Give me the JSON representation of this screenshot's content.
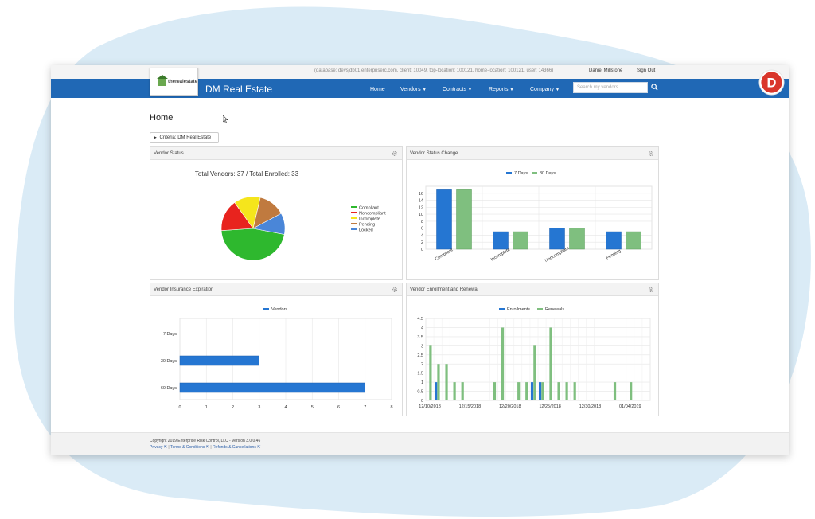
{
  "topbar": {
    "db_info": "(database: devsjdb01.enterpriserc.com, client: 10049, top-location: 100121, home-location: 100121, user: 14366)",
    "user_name": "Daniel Millstone",
    "sign_out": "Sign Out"
  },
  "header": {
    "logo_text": "therealestate",
    "brand": "DM Real Estate",
    "nav": [
      {
        "label": "Home",
        "dropdown": false
      },
      {
        "label": "Vendors",
        "dropdown": true
      },
      {
        "label": "Contracts",
        "dropdown": true
      },
      {
        "label": "Reports",
        "dropdown": true
      },
      {
        "label": "Company",
        "dropdown": true
      }
    ],
    "search_placeholder": "Search my vendors",
    "avatar_letter": "D"
  },
  "main": {
    "title": "Home",
    "criteria": "Criteria: DM Real Estate"
  },
  "panels": {
    "vendor_status": "Vendor Status",
    "vendor_status_change": "Vendor Status Change",
    "vendor_insurance_expiration": "Vendor Insurance Expiration",
    "vendor_enrollment_renewal": "Vendor Enrollment and Renewal"
  },
  "footer": {
    "copyright": "Copyright 2019 Enterprise Risk Control, LLC - Version 3.0.0.46",
    "links": [
      "Privacy",
      "Terms & Conditions",
      "Refunds & Cancellations"
    ]
  },
  "colors": {
    "nav_blue": "#2068b5",
    "blue_series": "#2576d2",
    "green_series": "#7fbf7f",
    "avatar_red": "#d9362b"
  },
  "chart_data": [
    {
      "type": "pie",
      "title": "Total Vendors: 37 / Total Enrolled: 33",
      "legend_position": "right",
      "slices": [
        {
          "label": "Compliant",
          "value": 17,
          "color": "#2eb82e"
        },
        {
          "label": "Noncompliant",
          "value": 6,
          "color": "#e8231e"
        },
        {
          "label": "Incomplete",
          "value": 5,
          "color": "#f5e51c"
        },
        {
          "label": "Pending",
          "value": 5,
          "color": "#c07a3f"
        },
        {
          "label": "Locked",
          "value": 4,
          "color": "#4a86d8"
        }
      ]
    },
    {
      "type": "bar",
      "categories": [
        "Compliant",
        "Incomplete",
        "Noncompliant",
        "Pending"
      ],
      "series": [
        {
          "name": "7 Days",
          "values": [
            17,
            5,
            6,
            5
          ],
          "color": "#2576d2"
        },
        {
          "name": "30 Days",
          "values": [
            17,
            5,
            6,
            5
          ],
          "color": "#7fbf7f"
        }
      ],
      "ylim": [
        0,
        18
      ],
      "yticks": [
        0,
        2,
        4,
        6,
        8,
        10,
        12,
        14,
        16
      ],
      "legend_position": "top",
      "grid": true
    },
    {
      "type": "bar",
      "orientation": "horizontal",
      "categories": [
        "7 Days",
        "30 Days",
        "60 Days"
      ],
      "series": [
        {
          "name": "Vendors",
          "values": [
            0,
            3,
            7
          ],
          "color": "#2576d2"
        }
      ],
      "xlim": [
        0,
        8
      ],
      "xticks": [
        0,
        1,
        2,
        3,
        4,
        5,
        6,
        7,
        8
      ],
      "legend_position": "top",
      "grid": true
    },
    {
      "type": "bar",
      "x_start": "2018-12-10",
      "x": [
        "12/10/2018",
        "12/11/2018",
        "12/12/2018",
        "12/13/2018",
        "12/14/2018",
        "12/15/2018",
        "12/16/2018",
        "12/17/2018",
        "12/18/2018",
        "12/19/2018",
        "12/20/2018",
        "12/21/2018",
        "12/22/2018",
        "12/23/2018",
        "12/24/2018",
        "12/25/2018",
        "12/26/2018",
        "12/27/2018",
        "12/28/2018",
        "12/29/2018",
        "12/30/2018",
        "12/31/2018",
        "01/01/2019",
        "01/02/2019",
        "01/03/2019",
        "01/04/2019",
        "01/05/2019",
        "01/06/2019"
      ],
      "xtick_labels": [
        "12/10/2018",
        "12/15/2018",
        "12/20/2018",
        "12/25/2018",
        "12/30/2018",
        "01/04/2019"
      ],
      "series": [
        {
          "name": "Enrollments",
          "values": [
            0,
            1,
            0,
            0,
            0,
            0,
            0,
            0,
            0,
            0,
            0,
            0,
            0,
            1,
            1,
            0,
            0,
            0,
            0,
            0,
            0,
            0,
            0,
            0,
            0,
            0,
            0,
            0
          ],
          "color": "#2576d2"
        },
        {
          "name": "Renewals",
          "values": [
            3,
            2,
            2,
            1,
            1,
            0,
            0,
            0,
            1,
            4,
            0,
            1,
            1,
            3,
            1,
            4,
            1,
            1,
            1,
            0,
            0,
            0,
            0,
            1,
            0,
            1,
            0,
            0
          ],
          "color": "#7fbf7f"
        }
      ],
      "ylim": [
        0,
        4.5
      ],
      "yticks": [
        0,
        0.5,
        1,
        1.5,
        2,
        2.5,
        3,
        3.5,
        4,
        4.5
      ],
      "legend_position": "top",
      "grid": true
    }
  ]
}
